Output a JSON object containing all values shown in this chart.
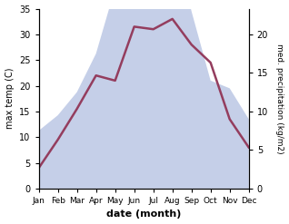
{
  "months": [
    "Jan",
    "Feb",
    "Mar",
    "Apr",
    "May",
    "Jun",
    "Jul",
    "Aug",
    "Sep",
    "Oct",
    "Nov",
    "Dec"
  ],
  "month_positions": [
    0,
    1,
    2,
    3,
    4,
    5,
    6,
    7,
    8,
    9,
    10,
    11
  ],
  "temperature": [
    4.0,
    9.5,
    15.5,
    22.0,
    21.0,
    31.5,
    31.0,
    33.0,
    28.0,
    24.5,
    13.5,
    8.0
  ],
  "precipitation": [
    7.5,
    9.5,
    12.5,
    17.5,
    26.0,
    34.0,
    33.5,
    33.5,
    23.0,
    14.0,
    13.0,
    9.0
  ],
  "temp_color": "#943d5e",
  "precip_fill_color": "#c5cfe8",
  "temp_ylim": [
    0,
    35
  ],
  "precip_ylim": [
    0,
    23.33
  ],
  "temp_yticks": [
    0,
    5,
    10,
    15,
    20,
    25,
    30,
    35
  ],
  "precip_yticks": [
    0,
    5,
    10,
    15,
    20
  ],
  "xlabel": "date (month)",
  "ylabel_left": "max temp (C)",
  "ylabel_right": "med. precipitation (kg/m2)",
  "background_color": "#ffffff"
}
